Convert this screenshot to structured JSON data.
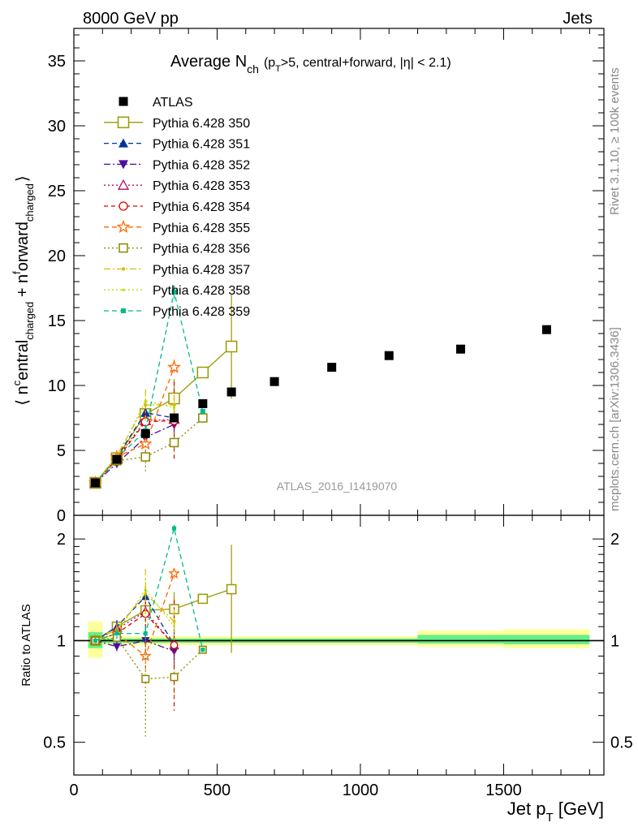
{
  "header": {
    "left": "8000 GeV pp",
    "right": "Jets"
  },
  "side_labels": {
    "rivet": "Rivet 3.1.10, ≥ 100k events",
    "mcplots": "mcplots.cern.ch [arXiv:1306.3436]"
  },
  "chart_data": [
    {
      "type": "scatter",
      "title_main": "Average N",
      "title_sub": "ch",
      "title_rest": "(p",
      "title_rest_sub": "T",
      "title_rest2": ">5, central+forward, |η| < 2.1)",
      "watermark": "ATLAS_2016_I1419070",
      "ylabel": "⟨ nᶜ entral charged + nᶠ orward charged ⟩",
      "ylabel_parts": [
        "⟨ n",
        "c",
        "entral",
        "charged",
        " + n",
        "f",
        "orward",
        "charged",
        "⟩"
      ],
      "xlim": [
        0,
        1850
      ],
      "ylim": [
        0,
        37.5
      ],
      "yticks": [
        0,
        5,
        10,
        15,
        20,
        25,
        30,
        35
      ],
      "xticks": [
        0,
        500,
        1000,
        1500
      ],
      "data_series": {
        "name": "ATLAS",
        "x": [
          75,
          150,
          250,
          350,
          450,
          550,
          700,
          900,
          1100,
          1350,
          1650
        ],
        "y": [
          2.5,
          4.3,
          6.3,
          7.5,
          8.6,
          9.5,
          10.3,
          11.4,
          12.3,
          12.8,
          14.3
        ]
      },
      "series": [
        {
          "name": "Pythia 6.428 350",
          "color": "#999900",
          "marker": "open-square",
          "dash": "solid",
          "x": [
            75,
            150,
            250,
            350,
            450,
            550
          ],
          "y": [
            2.5,
            4.4,
            7.8,
            9.0,
            11.0,
            13.0
          ],
          "err": [
            0.2,
            0.4,
            1.0,
            1.5,
            0,
            4.0
          ]
        },
        {
          "name": "Pythia 6.428 351",
          "color": "#003399",
          "marker": "triangle-up",
          "dash": "6,4",
          "x": [
            75,
            150,
            250,
            350
          ],
          "y": [
            2.5,
            4.5,
            7.9,
            7.5
          ],
          "err": [
            0.2,
            0.3,
            0.8,
            0.8
          ]
        },
        {
          "name": "Pythia 6.428 352",
          "color": "#4b0fa0",
          "marker": "triangle-down",
          "dash": "8,3,2,3",
          "x": [
            75,
            150,
            250,
            350
          ],
          "y": [
            2.5,
            4.0,
            6.0,
            7.0
          ],
          "err": [
            0.2,
            0.3,
            0.8,
            0.8
          ]
        },
        {
          "name": "Pythia 6.428 353",
          "color": "#aa1166",
          "marker": "open-triangle",
          "dash": "2,3",
          "x": [
            75,
            150,
            250,
            350
          ],
          "y": [
            2.5,
            4.4,
            7.3,
            7.4
          ],
          "err": [
            0.2,
            0.3,
            0.8,
            0.8
          ]
        },
        {
          "name": "Pythia 6.428 354",
          "color": "#dd0000",
          "marker": "open-circle",
          "dash": "5,4",
          "x": [
            75,
            150,
            250,
            350
          ],
          "y": [
            2.5,
            4.3,
            7.2,
            7.3
          ],
          "err": [
            0.2,
            0.3,
            0.8,
            3.0
          ]
        },
        {
          "name": "Pythia 6.428 355",
          "color": "#ff6600",
          "marker": "open-star",
          "dash": "6,4",
          "x": [
            75,
            150,
            250,
            350
          ],
          "y": [
            2.5,
            4.5,
            5.5,
            11.4
          ],
          "err": [
            0.2,
            0.3,
            0.8,
            0.6
          ]
        },
        {
          "name": "Pythia 6.428 356",
          "color": "#888800",
          "marker": "open-square-small",
          "dash": "2,3",
          "x": [
            75,
            150,
            250,
            350,
            450
          ],
          "y": [
            2.5,
            4.2,
            4.5,
            5.6,
            7.5
          ],
          "err": [
            0.2,
            0.3,
            1.2,
            0.8,
            0
          ]
        },
        {
          "name": "Pythia 6.428 357",
          "color": "#ddbb00",
          "marker": "dot",
          "dash": "8,3,2,3",
          "x": [
            75,
            150,
            250,
            350
          ],
          "y": [
            2.5,
            4.6,
            8.5,
            8.5
          ],
          "err": [
            0.2,
            0.3,
            1.2,
            0.8
          ]
        },
        {
          "name": "Pythia 6.428 358",
          "color": "#bbdd00",
          "marker": "dot-small",
          "dash": "2,3",
          "x": [
            75,
            150,
            250,
            350
          ],
          "y": [
            2.5,
            4.4,
            8.8,
            8.3
          ],
          "err": [
            0.2,
            0.3,
            0.8,
            0.8
          ]
        },
        {
          "name": "Pythia 6.428 359",
          "color": "#00bb88",
          "marker": "filled-square-small",
          "dash": "6,4",
          "x": [
            75,
            150,
            250,
            350,
            450
          ],
          "y": [
            2.5,
            4.4,
            6.5,
            17.2,
            8.0
          ],
          "err": [
            0.2,
            0.3,
            0.5,
            0.5,
            0
          ]
        }
      ]
    },
    {
      "type": "scatter",
      "ylabel": "Ratio to ATLAS",
      "xlabel_main": "Jet p",
      "xlabel_sub": "T",
      "xlabel_rest": " [GeV]",
      "xlim": [
        0,
        1850
      ],
      "ylim": [
        0.4,
        2.35
      ],
      "log_y": true,
      "yticks": [
        0.5,
        1,
        2
      ],
      "ytick_labels": [
        "0.5",
        "1",
        "2"
      ],
      "xticks": [
        0,
        500,
        1000,
        1500
      ],
      "xtick_labels": [
        "0",
        "500",
        "1000",
        "1500"
      ],
      "bands": [
        {
          "x0": 50,
          "x1": 100,
          "y0_yellow": 0.89,
          "y1_yellow": 1.14,
          "y0_green": 0.95,
          "y1_green": 1.06
        },
        {
          "x0": 100,
          "x1": 1200,
          "y0_yellow": 0.97,
          "y1_yellow": 1.03,
          "y0_green": 0.985,
          "y1_green": 1.015
        },
        {
          "x0": 1200,
          "x1": 1500,
          "y0_yellow": 0.96,
          "y1_yellow": 1.07,
          "y0_green": 0.98,
          "y1_green": 1.04
        },
        {
          "x0": 1500,
          "x1": 1800,
          "y0_yellow": 0.95,
          "y1_yellow": 1.08,
          "y0_green": 0.975,
          "y1_green": 1.04
        }
      ],
      "series": [
        {
          "name": "Pythia 6.428 350",
          "x": [
            75,
            150,
            250,
            350,
            450,
            550
          ],
          "y": [
            1.0,
            1.1,
            1.23,
            1.24,
            1.33,
            1.42
          ],
          "err": [
            0.02,
            0.05,
            0.1,
            0.15,
            0,
            0.5
          ]
        },
        {
          "name": "Pythia 6.428 351",
          "x": [
            75,
            150,
            250,
            350
          ],
          "y": [
            1.0,
            1.1,
            1.35,
            0.97
          ],
          "err": [
            0.02,
            0.05,
            0.1,
            0.1
          ]
        },
        {
          "name": "Pythia 6.428 352",
          "x": [
            75,
            150,
            250,
            350
          ],
          "y": [
            1.0,
            0.96,
            1.0,
            0.93
          ],
          "err": [
            0.02,
            0.04,
            0.1,
            0.1
          ]
        },
        {
          "name": "Pythia 6.428 353",
          "x": [
            75,
            150,
            250,
            350
          ],
          "y": [
            1.0,
            1.08,
            1.22,
            0.97
          ],
          "err": [
            0.02,
            0.04,
            0.1,
            0.1
          ]
        },
        {
          "name": "Pythia 6.428 354",
          "x": [
            75,
            150,
            250,
            350
          ],
          "y": [
            1.0,
            1.05,
            1.2,
            0.97
          ],
          "err": [
            0.02,
            0.04,
            0.1,
            0.35
          ]
        },
        {
          "name": "Pythia 6.428 355",
          "x": [
            75,
            150,
            250,
            350
          ],
          "y": [
            1.0,
            1.05,
            0.9,
            1.58
          ],
          "err": [
            0.02,
            0.04,
            0.1,
            0.05
          ]
        },
        {
          "name": "Pythia 6.428 356",
          "x": [
            75,
            150,
            250,
            350,
            450
          ],
          "y": [
            1.0,
            1.02,
            0.77,
            0.78,
            0.94
          ],
          "err": [
            0.02,
            0.04,
            0.25,
            0.1,
            0
          ]
        },
        {
          "name": "Pythia 6.428 357",
          "x": [
            75,
            150,
            250,
            350
          ],
          "y": [
            1.0,
            1.08,
            1.38,
            1.14
          ],
          "err": [
            0.02,
            0.04,
            0.25,
            0.1
          ]
        },
        {
          "name": "Pythia 6.428 358",
          "x": [
            75,
            150,
            250,
            350
          ],
          "y": [
            1.0,
            1.05,
            1.42,
            1.1
          ],
          "err": [
            0.02,
            0.04,
            0.1,
            0.1
          ]
        },
        {
          "name": "Pythia 6.428 359",
          "x": [
            75,
            150,
            250,
            350,
            450
          ],
          "y": [
            1.0,
            1.05,
            1.05,
            2.15,
            0.94
          ],
          "err": [
            0.02,
            0.04,
            0.05,
            0.05,
            0
          ]
        }
      ]
    }
  ]
}
